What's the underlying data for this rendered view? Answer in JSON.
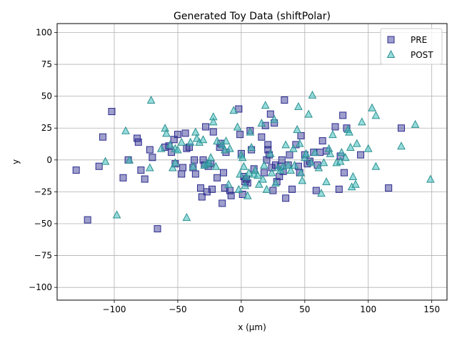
{
  "chart_data": {
    "type": "scatter",
    "title": "Generated Toy Data (shiftPolar)",
    "xlabel": "x (μm)",
    "ylabel": "y",
    "xlim": [
      -145,
      162
    ],
    "ylim": [
      -110,
      107
    ],
    "xticks": [
      -100,
      -50,
      0,
      50,
      100,
      150
    ],
    "yticks": [
      -100,
      -75,
      -50,
      -25,
      0,
      25,
      50,
      75,
      100
    ],
    "xtick_labels": [
      "−100",
      "−50",
      "0",
      "50",
      "100",
      "150"
    ],
    "ytick_labels": [
      "−100",
      "−75",
      "−50",
      "−25",
      "0",
      "25",
      "50",
      "75",
      "100"
    ],
    "grid": true,
    "legend_position": "top-right",
    "series": [
      {
        "name": "PRE",
        "marker": "square",
        "color": "#2b2b8f",
        "points": [
          [
            -130,
            -8
          ],
          [
            -121,
            -47
          ],
          [
            -112,
            -5
          ],
          [
            -109,
            18
          ],
          [
            -102,
            38
          ],
          [
            -93,
            -14
          ],
          [
            -89,
            0
          ],
          [
            -82,
            17
          ],
          [
            -81,
            14
          ],
          [
            -79,
            -8
          ],
          [
            -76,
            -15
          ],
          [
            -72,
            8
          ],
          [
            -70,
            2
          ],
          [
            -66,
            -54
          ],
          [
            -60,
            10
          ],
          [
            -57,
            11
          ],
          [
            -55,
            6
          ],
          [
            -53,
            16
          ],
          [
            -52,
            -3
          ],
          [
            -50,
            20
          ],
          [
            -47,
            -11
          ],
          [
            -46,
            -6
          ],
          [
            -44,
            21
          ],
          [
            -43,
            9
          ],
          [
            -41,
            10
          ],
          [
            -38,
            -6
          ],
          [
            -37,
            0
          ],
          [
            -36,
            -11
          ],
          [
            -32,
            -22
          ],
          [
            -31,
            -29
          ],
          [
            -30,
            0
          ],
          [
            -29,
            -4
          ],
          [
            -28,
            26
          ],
          [
            -27,
            -25
          ],
          [
            -26,
            -5
          ],
          [
            -24,
            -3
          ],
          [
            -23,
            -23
          ],
          [
            -22,
            22
          ],
          [
            -19,
            -14
          ],
          [
            -17,
            10
          ],
          [
            -16,
            13
          ],
          [
            -15,
            -34
          ],
          [
            -14,
            -10
          ],
          [
            -13,
            -22
          ],
          [
            -12,
            6
          ],
          [
            -9,
            -24
          ],
          [
            -8,
            -28
          ],
          [
            -2,
            40
          ],
          [
            -1,
            20
          ],
          [
            0,
            5
          ],
          [
            1,
            -27
          ],
          [
            2,
            -13
          ],
          [
            3,
            -17
          ],
          [
            4,
            -15
          ],
          [
            5,
            -18
          ],
          [
            7,
            23
          ],
          [
            8,
            8
          ],
          [
            10,
            -7
          ],
          [
            16,
            18
          ],
          [
            18,
            -10
          ],
          [
            19,
            27
          ],
          [
            20,
            0
          ],
          [
            21,
            12
          ],
          [
            21,
            8
          ],
          [
            22,
            4
          ],
          [
            23,
            36
          ],
          [
            24,
            -6
          ],
          [
            25,
            -24
          ],
          [
            26,
            29
          ],
          [
            27,
            -4
          ],
          [
            28,
            -17
          ],
          [
            30,
            -13
          ],
          [
            31,
            -5
          ],
          [
            32,
            0
          ],
          [
            33,
            -9
          ],
          [
            34,
            47
          ],
          [
            35,
            -30
          ],
          [
            37,
            -4
          ],
          [
            38,
            4
          ],
          [
            40,
            -23
          ],
          [
            43,
            12
          ],
          [
            45,
            -5
          ],
          [
            46,
            -10
          ],
          [
            47,
            19
          ],
          [
            50,
            4
          ],
          [
            52,
            -3
          ],
          [
            54,
            -1
          ],
          [
            57,
            6
          ],
          [
            59,
            -24
          ],
          [
            60,
            -4
          ],
          [
            62,
            6
          ],
          [
            64,
            15
          ],
          [
            67,
            7
          ],
          [
            74,
            26
          ],
          [
            77,
            -23
          ],
          [
            78,
            3
          ],
          [
            80,
            35
          ],
          [
            81,
            -10
          ],
          [
            83,
            25
          ],
          [
            94,
            4
          ],
          [
            116,
            -22
          ],
          [
            126,
            25
          ]
        ]
      },
      {
        "name": "POST",
        "marker": "triangle",
        "color": "#40bfbf",
        "points": [
          [
            -107,
            -1
          ],
          [
            -98,
            -43
          ],
          [
            -91,
            23
          ],
          [
            -88,
            0
          ],
          [
            -71,
            47
          ],
          [
            -72,
            -6
          ],
          [
            -63,
            9
          ],
          [
            -60,
            25
          ],
          [
            -59,
            21
          ],
          [
            -56,
            12
          ],
          [
            -54,
            -6
          ],
          [
            -52,
            -2
          ],
          [
            -52,
            9
          ],
          [
            -50,
            8
          ],
          [
            -47,
            14
          ],
          [
            -43,
            -45
          ],
          [
            -40,
            14
          ],
          [
            -38,
            -5
          ],
          [
            -36,
            22
          ],
          [
            -35,
            17
          ],
          [
            -33,
            14
          ],
          [
            -30,
            16
          ],
          [
            -29,
            -4
          ],
          [
            -27,
            -3
          ],
          [
            -25,
            -2
          ],
          [
            -24,
            2
          ],
          [
            -22,
            34
          ],
          [
            -22,
            30
          ],
          [
            -20,
            -5
          ],
          [
            -19,
            15
          ],
          [
            -15,
            12
          ],
          [
            -13,
            8
          ],
          [
            -12,
            15
          ],
          [
            -10,
            -19
          ],
          [
            -9,
            9
          ],
          [
            -6,
            39
          ],
          [
            -3,
            26
          ],
          [
            -2,
            -23
          ],
          [
            -1,
            -11
          ],
          [
            0,
            4
          ],
          [
            1,
            2
          ],
          [
            2,
            -5
          ],
          [
            3,
            -20
          ],
          [
            4,
            -13
          ],
          [
            5,
            -28
          ],
          [
            6,
            -10
          ],
          [
            7,
            22
          ],
          [
            8,
            10
          ],
          [
            10,
            -11
          ],
          [
            11,
            -8
          ],
          [
            13,
            -12
          ],
          [
            14,
            -19
          ],
          [
            16,
            29
          ],
          [
            17,
            -15
          ],
          [
            18,
            -4
          ],
          [
            19,
            43
          ],
          [
            20,
            -23
          ],
          [
            23,
            5
          ],
          [
            24,
            -10
          ],
          [
            26,
            32
          ],
          [
            27,
            -18
          ],
          [
            29,
            -6
          ],
          [
            31,
            -8
          ],
          [
            33,
            -5
          ],
          [
            35,
            12
          ],
          [
            37,
            -4
          ],
          [
            39,
            -8
          ],
          [
            41,
            9
          ],
          [
            42,
            -4
          ],
          [
            44,
            24
          ],
          [
            45,
            42
          ],
          [
            46,
            13
          ],
          [
            47,
            -10
          ],
          [
            48,
            -16
          ],
          [
            50,
            2
          ],
          [
            51,
            5
          ],
          [
            53,
            36
          ],
          [
            55,
            -2
          ],
          [
            56,
            51
          ],
          [
            58,
            6
          ],
          [
            61,
            -6
          ],
          [
            63,
            -26
          ],
          [
            65,
            -2
          ],
          [
            67,
            -17
          ],
          [
            69,
            9
          ],
          [
            70,
            5
          ],
          [
            72,
            20
          ],
          [
            75,
            -2
          ],
          [
            78,
            -1
          ],
          [
            79,
            6
          ],
          [
            82,
            2
          ],
          [
            84,
            24
          ],
          [
            85,
            22
          ],
          [
            86,
            10
          ],
          [
            87,
            -21
          ],
          [
            88,
            -13
          ],
          [
            90,
            -19
          ],
          [
            91,
            13
          ],
          [
            95,
            30
          ],
          [
            100,
            9
          ],
          [
            103,
            41
          ],
          [
            106,
            -5
          ],
          [
            106,
            35
          ],
          [
            126,
            11
          ],
          [
            137,
            28
          ],
          [
            149,
            -15
          ]
        ]
      }
    ]
  }
}
